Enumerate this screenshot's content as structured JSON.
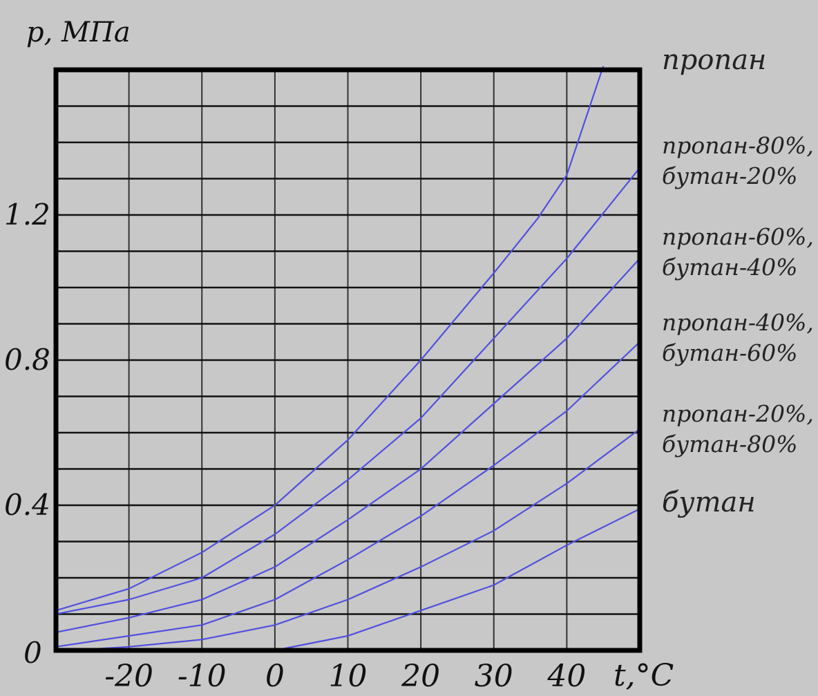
{
  "chart_data": {
    "type": "line",
    "ylabel": "p, МПа",
    "xlabel": "t,°C",
    "xlim": [
      -30,
      50
    ],
    "ylim": [
      0,
      1.6
    ],
    "grid": true,
    "x_ticks": [
      {
        "value": -20,
        "label": "-20"
      },
      {
        "value": -10,
        "label": "-10"
      },
      {
        "value": 0,
        "label": "0"
      },
      {
        "value": 10,
        "label": "10"
      },
      {
        "value": 20,
        "label": "20"
      },
      {
        "value": 30,
        "label": "30"
      },
      {
        "value": 40,
        "label": "40"
      }
    ],
    "y_ticks": [
      {
        "value": 0,
        "label": "0"
      },
      {
        "value": 0.4,
        "label": "0.4"
      },
      {
        "value": 0.8,
        "label": "0.8"
      },
      {
        "value": 1.2,
        "label": "1.2"
      }
    ],
    "y_grid_step": 0.1,
    "x_grid_step": 10,
    "series": [
      {
        "name": "пропан",
        "label_lines": [
          "пропан"
        ],
        "x": [
          -30,
          -20,
          -10,
          0,
          10,
          20,
          30,
          36,
          40,
          45
        ],
        "y": [
          0.11,
          0.17,
          0.27,
          0.4,
          0.58,
          0.8,
          1.04,
          1.19,
          1.31,
          1.61
        ]
      },
      {
        "name": "пропан-80%, бутан-20%",
        "label_lines": [
          "пропан-80%,",
          "бутан-20%"
        ],
        "x": [
          -30,
          -20,
          -10,
          0,
          10,
          20,
          30,
          40,
          50
        ],
        "y": [
          0.1,
          0.14,
          0.2,
          0.32,
          0.47,
          0.64,
          0.86,
          1.08,
          1.33
        ]
      },
      {
        "name": "пропан-60%, бутан-40%",
        "label_lines": [
          "пропан-60%,",
          "бутан-40%"
        ],
        "x": [
          -30,
          -20,
          -10,
          0,
          10,
          20,
          30,
          40,
          50
        ],
        "y": [
          0.05,
          0.09,
          0.14,
          0.23,
          0.36,
          0.5,
          0.68,
          0.86,
          1.08
        ]
      },
      {
        "name": "пропан-40%, бутан-60%",
        "label_lines": [
          "пропан-40%,",
          "бутан-60%"
        ],
        "x": [
          -30,
          -20,
          -10,
          0,
          10,
          20,
          30,
          40,
          50
        ],
        "y": [
          0.01,
          0.04,
          0.07,
          0.14,
          0.25,
          0.37,
          0.51,
          0.66,
          0.85
        ]
      },
      {
        "name": "пропан-20%, бутан-80%",
        "label_lines": [
          "пропан-20%,",
          "бутан-80%"
        ],
        "x": [
          -28,
          -20,
          -10,
          0,
          10,
          20,
          30,
          40,
          50
        ],
        "y": [
          0.0,
          0.01,
          0.03,
          0.07,
          0.14,
          0.23,
          0.33,
          0.46,
          0.61
        ]
      },
      {
        "name": "бутан",
        "label_lines": [
          "бутан"
        ],
        "x": [
          0,
          10,
          20,
          30,
          40,
          50
        ],
        "y": [
          0.0,
          0.04,
          0.11,
          0.18,
          0.29,
          0.39
        ]
      }
    ],
    "line_color": "#5050e0"
  }
}
